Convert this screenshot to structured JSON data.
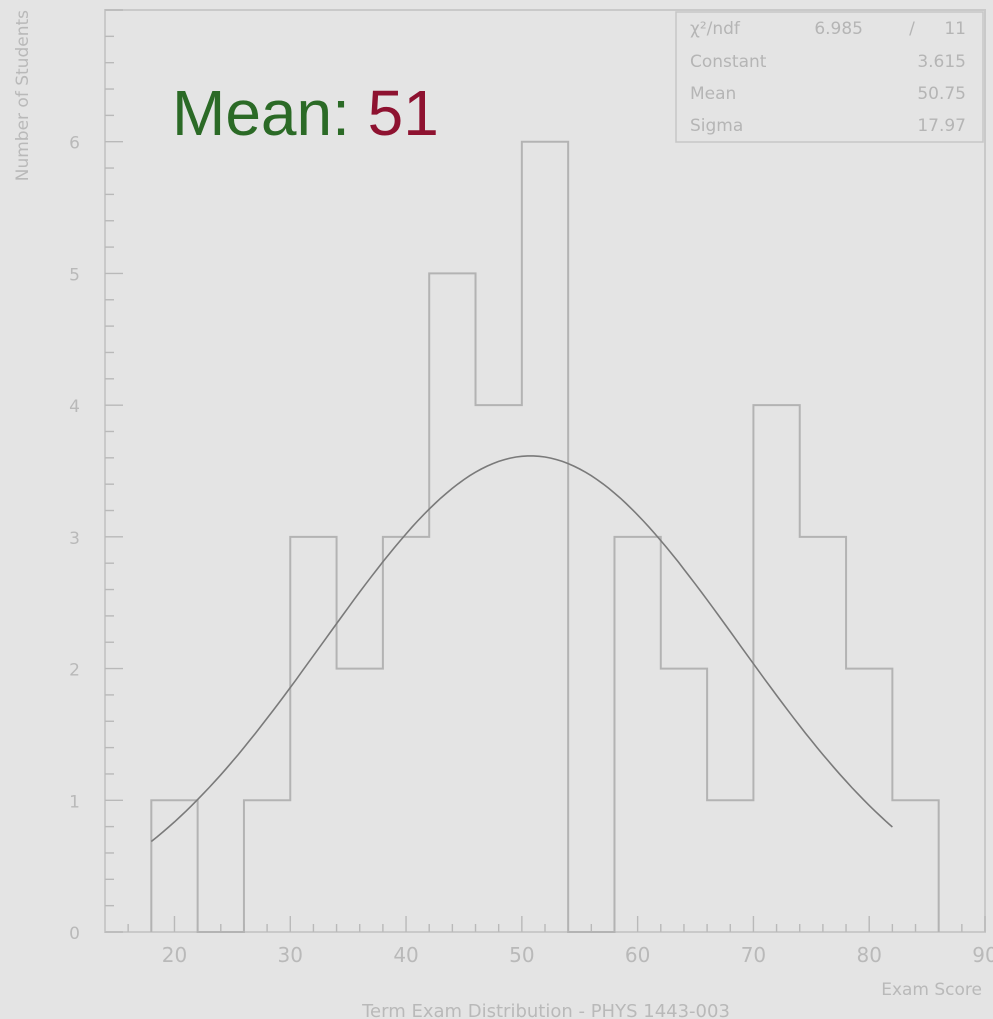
{
  "annotation": {
    "label": "Mean: ",
    "value": "51"
  },
  "stats": {
    "rows": [
      {
        "label": "χ²/ndf",
        "value": "6.985",
        "sep": "/",
        "extra": "11"
      },
      {
        "label": "Constant",
        "value": "3.615"
      },
      {
        "label": "Mean",
        "value": "50.75"
      },
      {
        "label": "Sigma",
        "value": "17.97"
      }
    ]
  },
  "colors": {
    "annotation_label": "#2b6a26",
    "annotation_value": "#8e1230",
    "hist_line": "#b3b3b3",
    "fit_line": "#7a7a7a"
  },
  "chart_data": {
    "type": "bar",
    "title": "Term Exam Distribution - PHYS 1443-003",
    "xlabel": "Exam Score",
    "ylabel": "Number of Students",
    "xlim": [
      14,
      90
    ],
    "ylim": [
      0,
      7
    ],
    "xticks": [
      20,
      30,
      40,
      50,
      60,
      70,
      80,
      90
    ],
    "yticks": [
      0,
      1,
      2,
      3,
      4,
      5,
      6
    ],
    "bin_edges": [
      18,
      22,
      26,
      30,
      34,
      38,
      42,
      46,
      50,
      54,
      58,
      62,
      66,
      70,
      74,
      78,
      82,
      86
    ],
    "values": [
      1,
      0,
      1,
      3,
      2,
      3,
      5,
      4,
      6,
      0,
      3,
      2,
      1,
      4,
      3,
      2,
      1
    ],
    "fit": {
      "type": "gaussian",
      "constant": 3.615,
      "mean": 50.75,
      "sigma": 17.97,
      "range": [
        18,
        82
      ]
    },
    "grid": false
  }
}
